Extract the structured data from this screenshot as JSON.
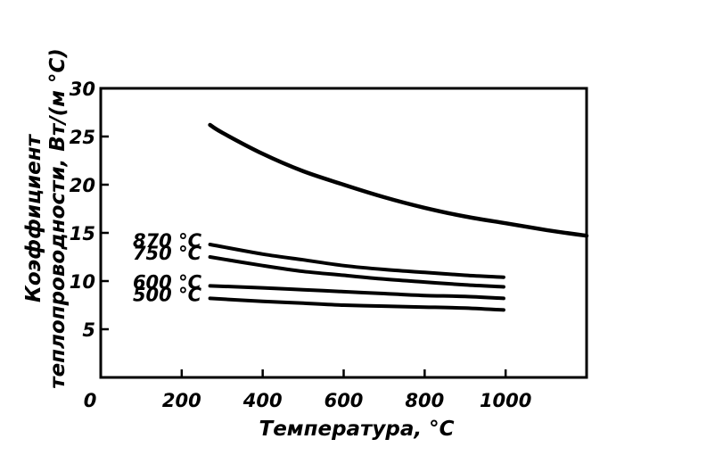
{
  "chart_data": {
    "type": "line",
    "title": "",
    "xlabel": "Температура, °C",
    "ylabel_line1": "Коэффициент",
    "ylabel_line2": "теплопроводности, Вт/(м °С)",
    "xlim": [
      0,
      1200
    ],
    "ylim": [
      0,
      30
    ],
    "x_ticks": [
      0,
      200,
      400,
      600,
      800,
      1000
    ],
    "x_tick_labels": [
      "0",
      "200",
      "400",
      "600",
      "800",
      "1000"
    ],
    "y_ticks": [
      5,
      10,
      15,
      20,
      25,
      30
    ],
    "y_tick_labels": [
      "5",
      "10",
      "15",
      "20",
      "25",
      "30"
    ],
    "grid": false,
    "legend": "none",
    "series": [
      {
        "x": [
          270,
          300,
          400,
          500,
          600,
          700,
          800,
          900,
          1000,
          1100,
          1200
        ],
        "values": [
          26.2,
          25.4,
          23.2,
          21.4,
          20.0,
          18.7,
          17.6,
          16.7,
          16.0,
          15.3,
          14.7
        ]
      },
      {
        "name": "870 °C",
        "x": [
          270,
          400,
          500,
          600,
          700,
          800,
          900,
          995
        ],
        "values": [
          13.8,
          12.8,
          12.2,
          11.6,
          11.2,
          10.9,
          10.6,
          10.4
        ]
      },
      {
        "name": "750 °C",
        "x": [
          270,
          400,
          500,
          600,
          700,
          800,
          900,
          995
        ],
        "values": [
          12.5,
          11.6,
          11.0,
          10.6,
          10.2,
          9.9,
          9.6,
          9.4
        ]
      },
      {
        "name": "600 °C",
        "x": [
          270,
          400,
          500,
          600,
          700,
          800,
          900,
          995
        ],
        "values": [
          9.5,
          9.3,
          9.1,
          8.9,
          8.7,
          8.5,
          8.4,
          8.2
        ]
      },
      {
        "name": "500 °C",
        "x": [
          270,
          400,
          500,
          600,
          700,
          800,
          900,
          995
        ],
        "values": [
          8.2,
          7.9,
          7.7,
          7.5,
          7.4,
          7.3,
          7.2,
          7.0
        ]
      }
    ]
  }
}
